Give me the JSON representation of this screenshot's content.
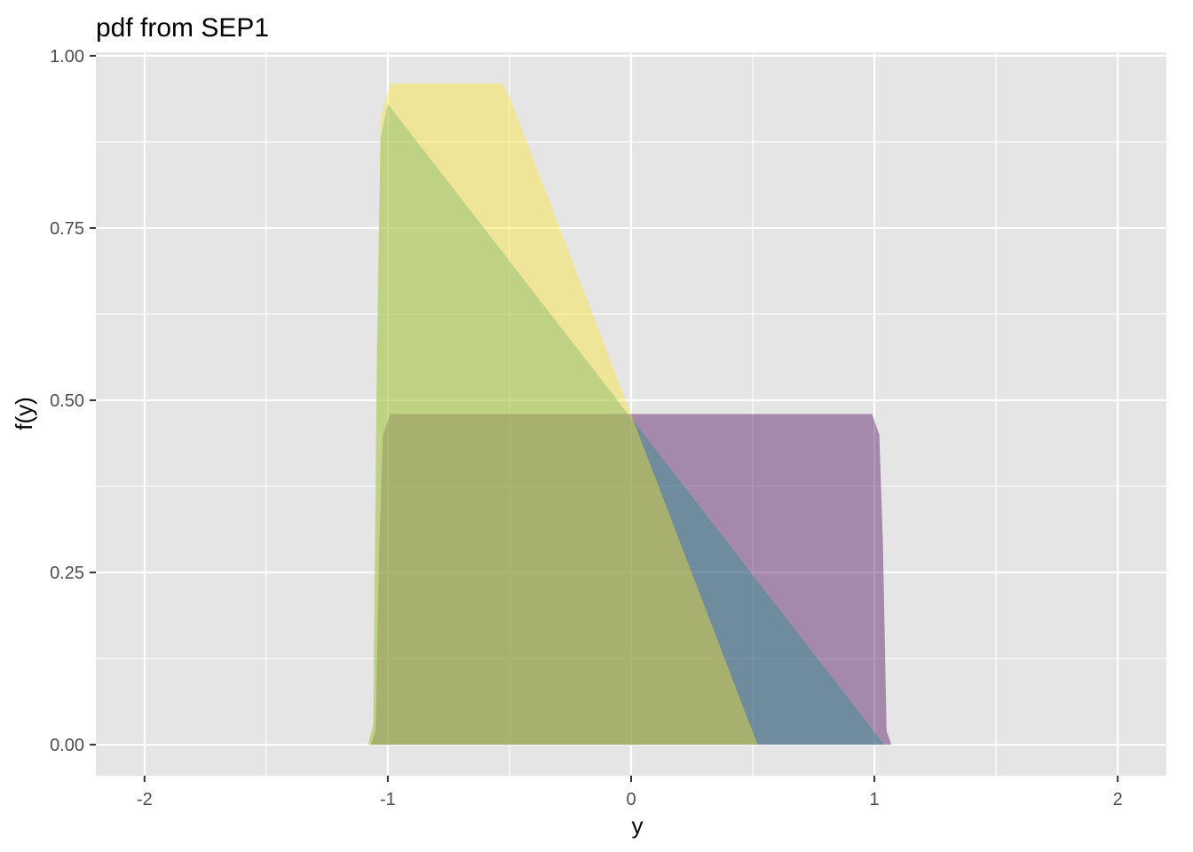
{
  "chart_data": {
    "type": "area",
    "title": "pdf from  SEP1",
    "xlabel": "y",
    "ylabel": "f(y)",
    "xlim": [
      -2.2,
      2.2
    ],
    "ylim": [
      -0.045,
      1.005
    ],
    "x_ticks": [
      -2,
      -1,
      0,
      1,
      2
    ],
    "x_tick_labels": [
      "-2",
      "-1",
      "0",
      "1",
      "2"
    ],
    "y_ticks": [
      0,
      0.25,
      0.5,
      0.75,
      1
    ],
    "y_tick_labels": [
      "0.00",
      "0.25",
      "0.50",
      "0.75",
      "1.00"
    ],
    "grid": true,
    "panel_background": "#E5E5E5",
    "grid_color": "#FFFFFF",
    "legend": "none",
    "series": [
      {
        "color": "#440154",
        "opacity": 0.4,
        "points": [
          {
            "x": -1.07,
            "y": 0
          },
          {
            "x": -1.05,
            "y": 0.02
          },
          {
            "x": -1.035,
            "y": 0.29
          },
          {
            "x": -1.02,
            "y": 0.45
          },
          {
            "x": -0.99,
            "y": 0.48
          },
          {
            "x": 0.99,
            "y": 0.48
          },
          {
            "x": 1.02,
            "y": 0.45
          },
          {
            "x": 1.035,
            "y": 0.29
          },
          {
            "x": 1.05,
            "y": 0.02
          },
          {
            "x": 1.07,
            "y": 0
          }
        ]
      },
      {
        "color": "#21908C",
        "opacity": 0.4,
        "points": [
          {
            "x": -1.08,
            "y": 0
          },
          {
            "x": -1.06,
            "y": 0.03
          },
          {
            "x": -1.045,
            "y": 0.55
          },
          {
            "x": -1.03,
            "y": 0.88
          },
          {
            "x": -1.0,
            "y": 0.93
          },
          {
            "x": 1.04,
            "y": 0
          }
        ]
      },
      {
        "color": "#FDE725",
        "opacity": 0.4,
        "points": [
          {
            "x": -1.08,
            "y": 0
          },
          {
            "x": -1.06,
            "y": 0.03
          },
          {
            "x": -1.045,
            "y": 0.57
          },
          {
            "x": -1.03,
            "y": 0.91
          },
          {
            "x": -0.99,
            "y": 0.96
          },
          {
            "x": -0.53,
            "y": 0.96
          },
          {
            "x": -0.5,
            "y": 0.94
          },
          {
            "x": 0.52,
            "y": 0
          }
        ]
      }
    ]
  }
}
